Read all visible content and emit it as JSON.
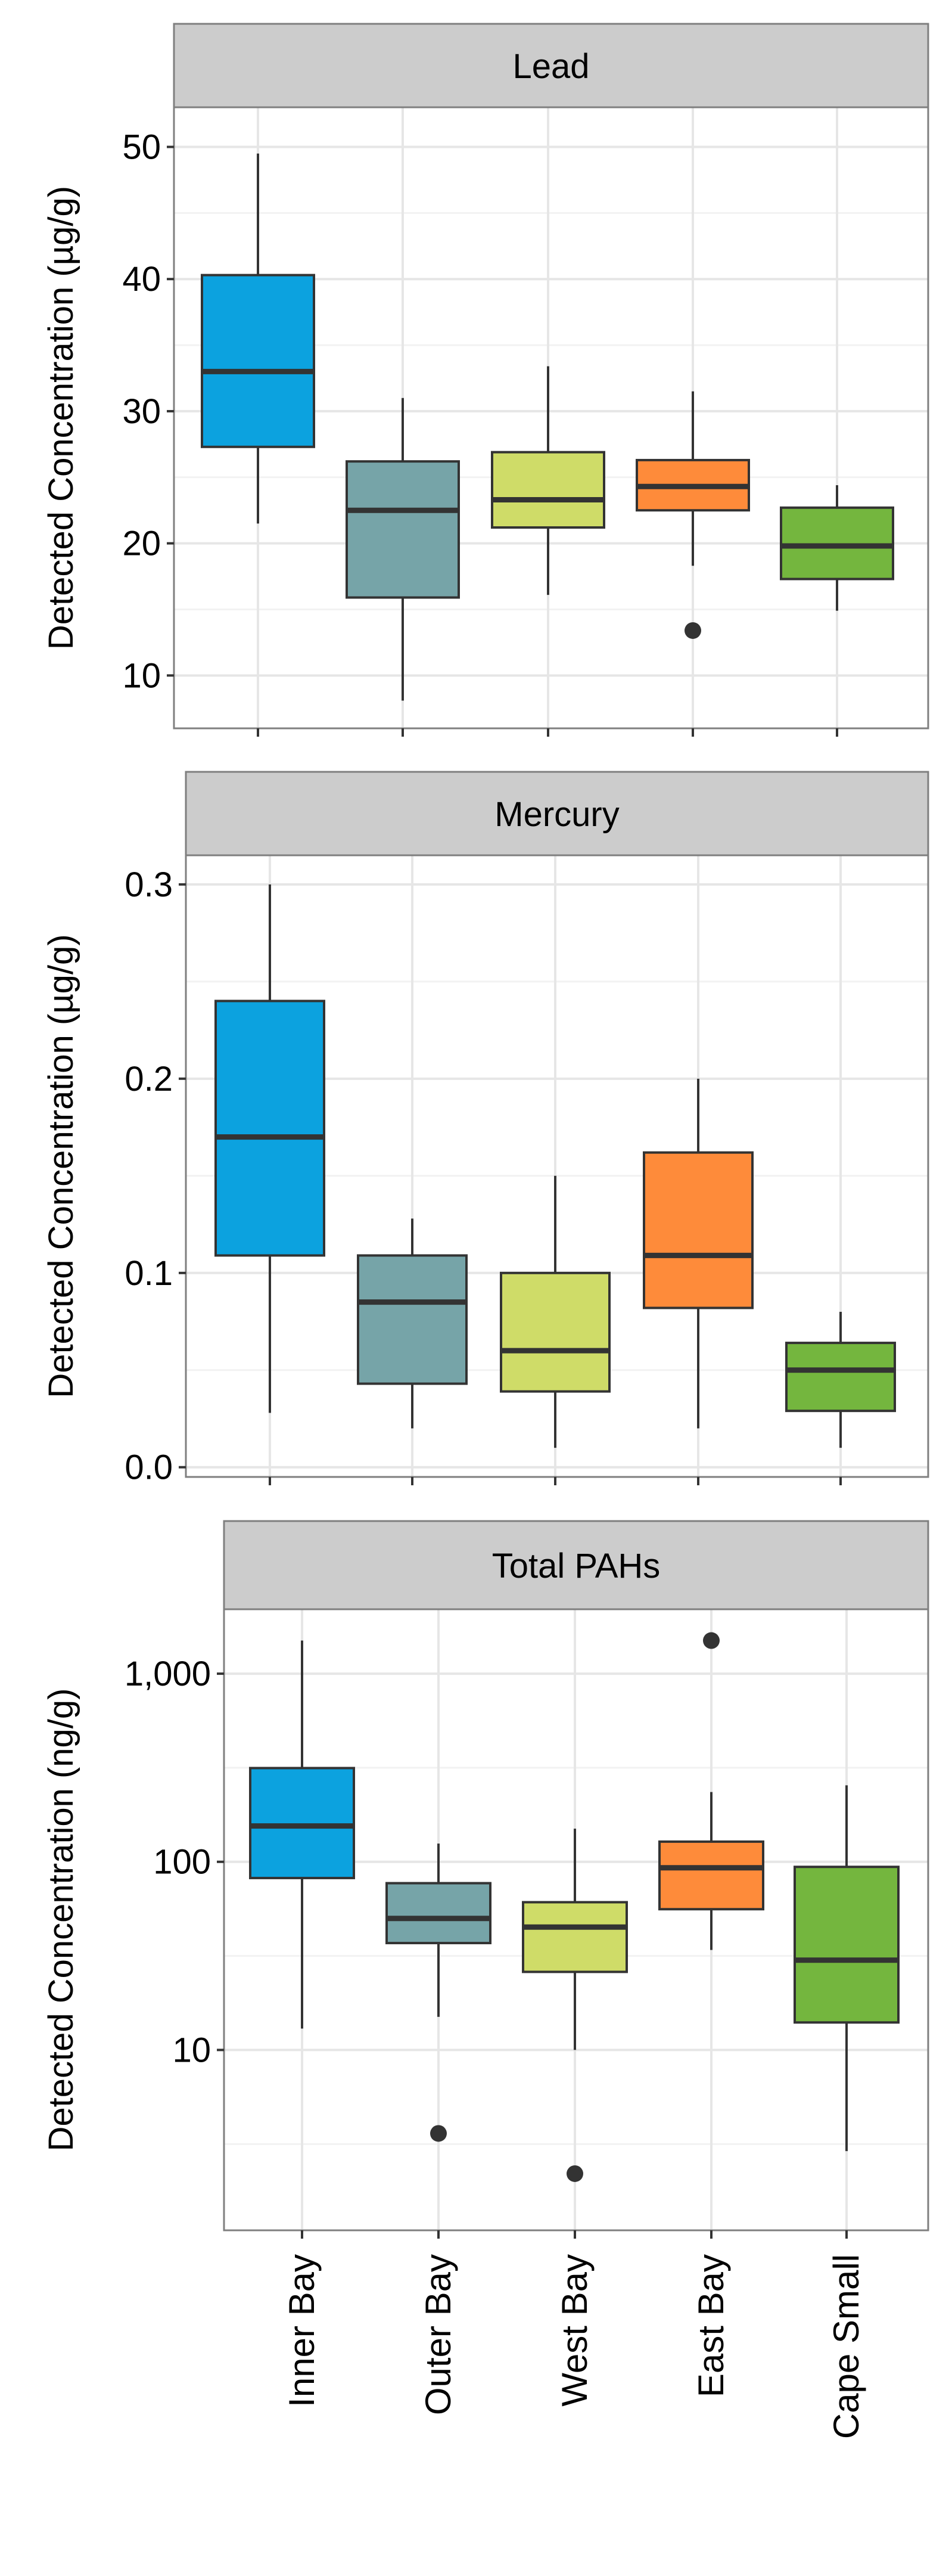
{
  "chart_data": [
    {
      "type": "box",
      "facet": "Lead",
      "ylabel": "Detected Concentration (µg/g)",
      "scale": "linear",
      "ylim": [
        6,
        53
      ],
      "yticks": [
        10,
        20,
        30,
        40,
        50
      ],
      "ytick_labels": [
        "10",
        "20",
        "30",
        "40",
        "50"
      ],
      "categories": [
        "Inner Bay",
        "Outer Bay",
        "West Bay",
        "East Bay",
        "Cape Small"
      ],
      "boxes": [
        {
          "category": "Inner Bay",
          "color": "#0CA2DF",
          "whisker_low": 21.5,
          "q1": 27.3,
          "median": 33.0,
          "q3": 40.3,
          "whisker_high": 49.5,
          "outliers": []
        },
        {
          "category": "Outer Bay",
          "color": "#76A4A8",
          "whisker_low": 8.1,
          "q1": 15.9,
          "median": 22.5,
          "q3": 26.2,
          "whisker_high": 31.0,
          "outliers": []
        },
        {
          "category": "West Bay",
          "color": "#CFDC68",
          "whisker_low": 16.1,
          "q1": 21.2,
          "median": 23.3,
          "q3": 26.9,
          "whisker_high": 33.4,
          "outliers": []
        },
        {
          "category": "East Bay",
          "color": "#FE8B3A",
          "whisker_low": 18.3,
          "q1": 22.5,
          "median": 24.3,
          "q3": 26.3,
          "whisker_high": 31.5,
          "outliers": [
            13.4
          ]
        },
        {
          "category": "Cape Small",
          "color": "#74B63E",
          "whisker_low": 14.9,
          "q1": 17.3,
          "median": 19.8,
          "q3": 22.7,
          "whisker_high": 24.4,
          "outliers": []
        }
      ],
      "grid": true
    },
    {
      "type": "box",
      "facet": "Mercury",
      "ylabel": "Detected Concentration (µg/g)",
      "scale": "linear",
      "ylim": [
        -0.005,
        0.315
      ],
      "yticks": [
        0.0,
        0.1,
        0.2,
        0.3
      ],
      "ytick_labels": [
        "0.0",
        "0.1",
        "0.2",
        "0.3"
      ],
      "categories": [
        "Inner Bay",
        "Outer Bay",
        "West Bay",
        "East Bay",
        "Cape Small"
      ],
      "boxes": [
        {
          "category": "Inner Bay",
          "color": "#0CA2DF",
          "whisker_low": 0.028,
          "q1": 0.109,
          "median": 0.17,
          "q3": 0.24,
          "whisker_high": 0.3,
          "outliers": []
        },
        {
          "category": "Outer Bay",
          "color": "#76A4A8",
          "whisker_low": 0.02,
          "q1": 0.043,
          "median": 0.085,
          "q3": 0.109,
          "whisker_high": 0.128,
          "outliers": []
        },
        {
          "category": "West Bay",
          "color": "#CFDC68",
          "whisker_low": 0.01,
          "q1": 0.039,
          "median": 0.06,
          "q3": 0.1,
          "whisker_high": 0.15,
          "outliers": []
        },
        {
          "category": "East Bay",
          "color": "#FE8B3A",
          "whisker_low": 0.02,
          "q1": 0.082,
          "median": 0.109,
          "q3": 0.162,
          "whisker_high": 0.2,
          "outliers": []
        },
        {
          "category": "Cape Small",
          "color": "#74B63E",
          "whisker_low": 0.01,
          "q1": 0.029,
          "median": 0.05,
          "q3": 0.064,
          "whisker_high": 0.08,
          "outliers": []
        }
      ],
      "grid": true
    },
    {
      "type": "box",
      "facet": "Total PAHs",
      "ylabel": "Detected Concentration (ng/g)",
      "scale": "log10",
      "ylim": [
        1.1,
        2200
      ],
      "yticks": [
        10,
        100,
        1000
      ],
      "ytick_labels": [
        "10",
        "100",
        "1,000"
      ],
      "categories": [
        "Inner Bay",
        "Outer Bay",
        "West Bay",
        "East Bay",
        "Cape Small"
      ],
      "boxes": [
        {
          "category": "Inner Bay",
          "color": "#0CA2DF",
          "whisker_low": 13,
          "q1": 82,
          "median": 155,
          "q3": 315,
          "whisker_high": 1500,
          "outliers": []
        },
        {
          "category": "Outer Bay",
          "color": "#76A4A8",
          "whisker_low": 15,
          "q1": 37,
          "median": 50,
          "q3": 77,
          "whisker_high": 125,
          "outliers": [
            3.6
          ]
        },
        {
          "category": "West Bay",
          "color": "#CFDC68",
          "whisker_low": 10,
          "q1": 26,
          "median": 45,
          "q3": 61,
          "whisker_high": 150,
          "outliers": [
            2.2
          ]
        },
        {
          "category": "East Bay",
          "color": "#FE8B3A",
          "whisker_low": 34,
          "q1": 56,
          "median": 93,
          "q3": 128,
          "whisker_high": 235,
          "outliers": [
            1500
          ]
        },
        {
          "category": "Cape Small",
          "color": "#74B63E",
          "whisker_low": 2.9,
          "q1": 14,
          "median": 30,
          "q3": 94,
          "whisker_high": 255,
          "outliers": []
        }
      ],
      "grid": true
    }
  ],
  "colors": {
    "strip_fill": "#CCCCCC",
    "panel_border": "#7F7F7F",
    "grid_major": "#E6E6E6",
    "grid_minor": "#F2F2F2",
    "box_outline": "#333333",
    "text": "#000000"
  }
}
